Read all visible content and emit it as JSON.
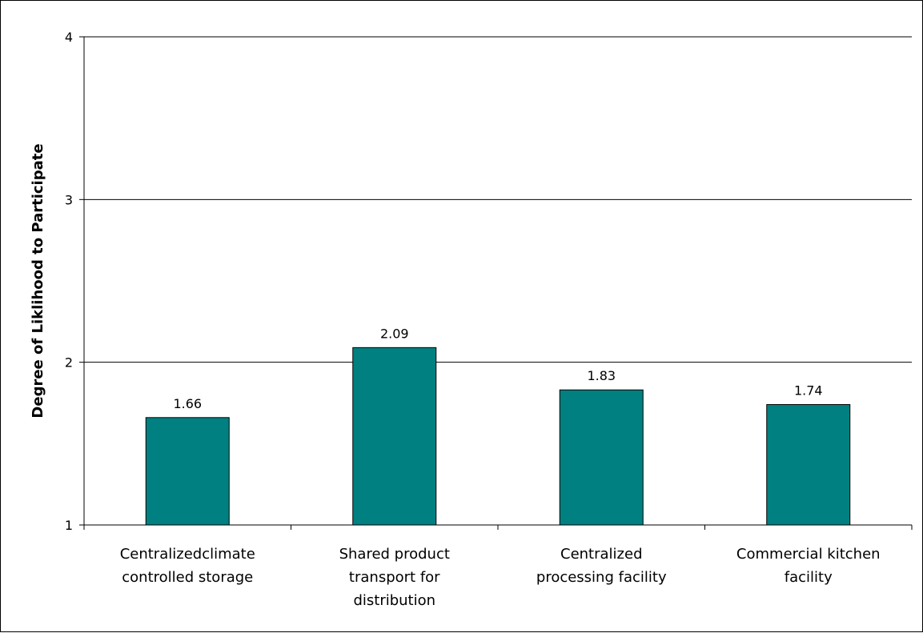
{
  "chart_data": {
    "type": "bar",
    "title": "",
    "xlabel": "",
    "ylabel": "Degree of Liklihood to Participate",
    "ylim": [
      1,
      4
    ],
    "yticks": [
      "1",
      "2",
      "3",
      "4"
    ],
    "grid": true,
    "legend": "none",
    "categories": [
      [
        "Centralizedclimate",
        "controlled storage"
      ],
      [
        "Shared product",
        "transport for",
        "distribution"
      ],
      [
        "Centralized",
        "processing facility"
      ],
      [
        "Commercial kitchen",
        "facility"
      ]
    ],
    "values": [
      1.66,
      2.09,
      1.83,
      1.74
    ],
    "value_labels": [
      "1.66",
      "2.09",
      "1.83",
      "1.74"
    ],
    "colors": {
      "bar": "#008080",
      "bar_outline": "#000000",
      "gridline": "#000000",
      "axis": "#000000"
    }
  }
}
